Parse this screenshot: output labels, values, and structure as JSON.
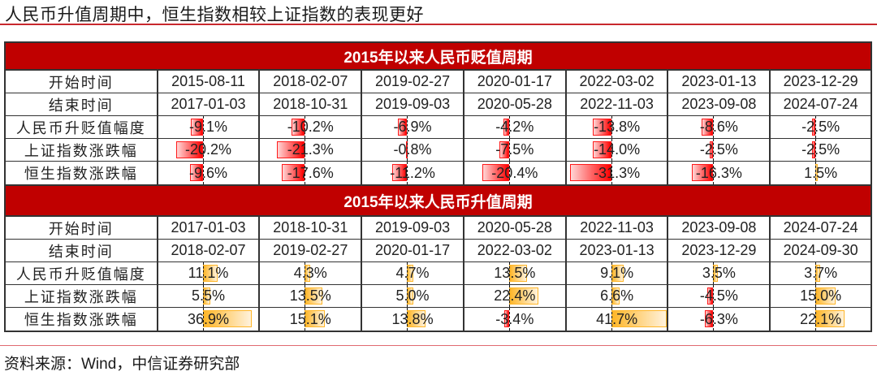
{
  "title": "人民币升值周期中，恒生指数相较上证指数的表现更好",
  "source": "资料来源：Wind，中信证券研究部",
  "colors": {
    "header_band": "#c00000",
    "negative_bar": "#ff0000",
    "positive_bar": "#ffb628",
    "title_rule": "#c8282d"
  },
  "depreciation": {
    "header": "2015年以来人民币贬值周期",
    "row_labels": [
      "开始时间",
      "结束时间",
      "人民币升贬值幅度",
      "上证指数涨跌幅",
      "恒生指数涨跌幅"
    ],
    "start": [
      "2015-08-11",
      "2018-02-07",
      "2019-02-27",
      "2020-01-17",
      "2022-03-02",
      "2023-01-13",
      "2023-12-29"
    ],
    "end": [
      "2017-01-03",
      "2018-10-31",
      "2019-09-03",
      "2020-05-28",
      "2022-11-03",
      "2023-09-08",
      "2024-07-24"
    ],
    "rmb": [
      "-9.1%",
      "-10.2%",
      "-6.9%",
      "-4.2%",
      "-13.8%",
      "-8.6%",
      "-2.5%"
    ],
    "sse": [
      "-20.2%",
      "-21.3%",
      "-0.8%",
      "-7.5%",
      "-14.0%",
      "-2.5%",
      "-2.5%"
    ],
    "hsi": [
      "-9.6%",
      "-17.6%",
      "-11.2%",
      "-20.4%",
      "-31.3%",
      "-16.3%",
      "1.5%"
    ]
  },
  "appreciation": {
    "header": "2015年以来人民币升值周期",
    "row_labels": [
      "开始时间",
      "结束时间",
      "人民币升贬值幅度",
      "上证指数涨跌幅",
      "恒生指数涨跌幅"
    ],
    "start": [
      "2017-01-03",
      "2018-10-31",
      "2019-09-03",
      "2020-05-28",
      "2022-11-03",
      "2023-09-08",
      "2024-07-24"
    ],
    "end": [
      "2018-02-07",
      "2019-02-27",
      "2020-01-17",
      "2022-03-02",
      "2023-01-13",
      "2023-12-29",
      "2024-09-30"
    ],
    "rmb": [
      "11.1%",
      "4.3%",
      "4.7%",
      "13.5%",
      "9.1%",
      "3.5%",
      "3.7%"
    ],
    "sse": [
      "5.5%",
      "13.5%",
      "5.0%",
      "22.4%",
      "6.6%",
      "-4.5%",
      "15.0%"
    ],
    "hsi": [
      "36.9%",
      "15.1%",
      "13.8%",
      "-3.4%",
      "41.7%",
      "-6.3%",
      "22.1%"
    ]
  }
}
